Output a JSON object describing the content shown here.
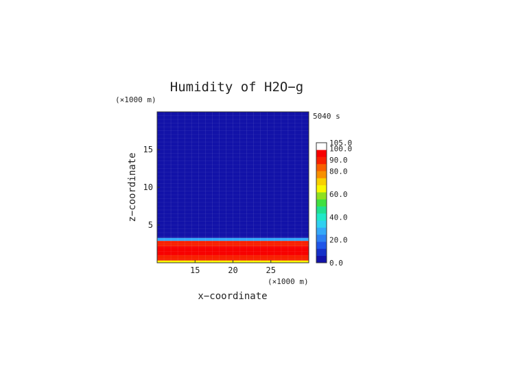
{
  "chart_data": {
    "type": "heatmap",
    "title": "Humidity of H2O−g",
    "time_label": "5040 s",
    "xlabel": "x−coordinate",
    "ylabel": "z−coordinate",
    "x_unit": "(×1000 m)",
    "z_unit": "(×1000 m)",
    "xlim": [
      10,
      30
    ],
    "ylim": [
      0,
      20
    ],
    "x_ticks": [
      15,
      20,
      25
    ],
    "y_ticks": [
      5,
      10,
      15
    ],
    "layers": [
      {
        "z_range": [
          0,
          0.3
        ],
        "value": 65
      },
      {
        "z_range": [
          0.3,
          1.0
        ],
        "value": 88
      },
      {
        "z_range": [
          1.0,
          2.2
        ],
        "value": 97
      },
      {
        "z_range": [
          2.2,
          2.9
        ],
        "value": 87
      },
      {
        "z_range": [
          2.9,
          3.3
        ],
        "value": 30
      },
      {
        "z_range": [
          3.3,
          20
        ],
        "value": 3
      }
    ],
    "colorbar": {
      "ticks": [
        "105.0",
        "100.0",
        "90.0",
        "80.0",
        "60.0",
        "40.0",
        "20.0",
        "0.0"
      ],
      "colors": [
        "#1212a8",
        "#1530c8",
        "#1f55e8",
        "#2d7ff2",
        "#35a8f8",
        "#30d0f0",
        "#20e8c8",
        "#20e090",
        "#40e040",
        "#90e020",
        "#f8f800",
        "#f8d000",
        "#f89000",
        "#f86000",
        "#f82000",
        "#f80000",
        "#ffffff"
      ]
    }
  }
}
